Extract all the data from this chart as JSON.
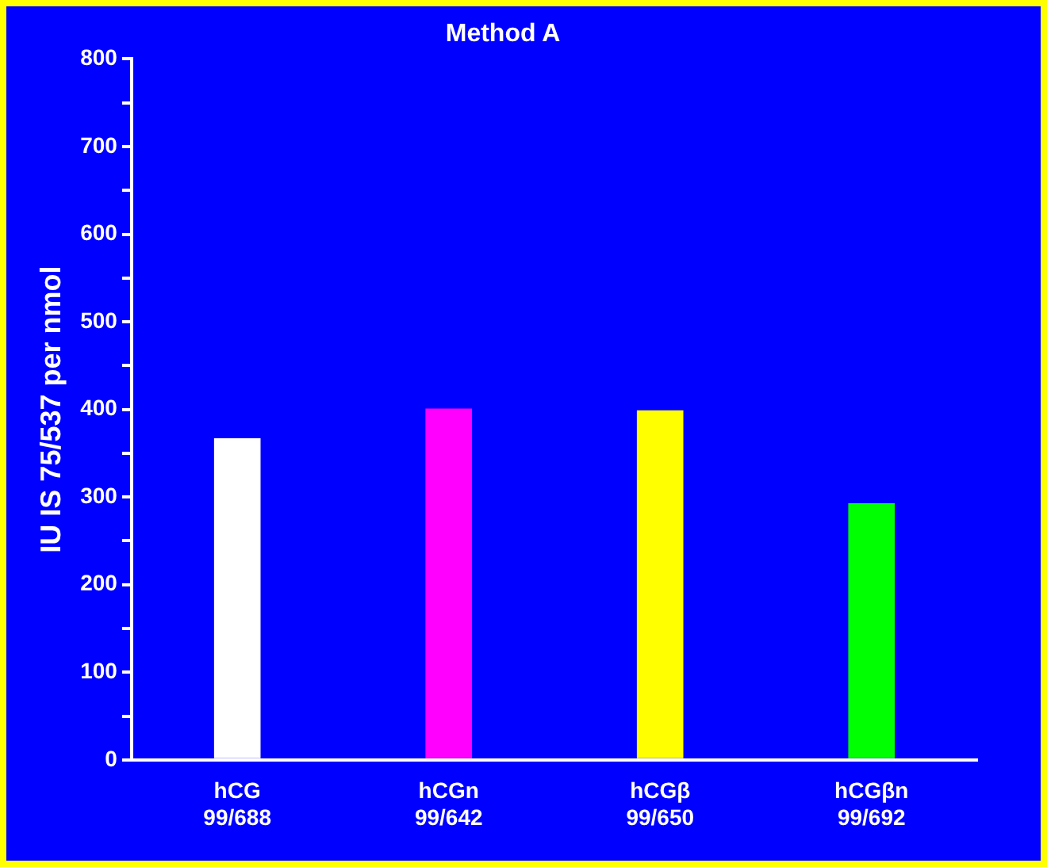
{
  "chart_data": {
    "type": "bar",
    "title": "Method A",
    "ylabel": "IU IS 75/537 per nmol",
    "categories": [
      "hCG\n99/688",
      "hCGn\n99/642",
      "hCGβ\n99/650",
      "hCGβn\n99/692"
    ],
    "values": [
      367,
      401,
      399,
      293
    ],
    "colors": [
      "#ffffff",
      "#ff00ff",
      "#ffff00",
      "#00ff00"
    ],
    "ylim": [
      0,
      800
    ],
    "yticks": [
      0,
      {
        "value": 50,
        "label": null
      },
      100,
      {
        "value": 150,
        "label": null
      },
      200,
      {
        "value": 250,
        "label": null
      },
      300,
      {
        "value": 350,
        "label": null
      },
      400,
      {
        "value": 450,
        "label": null
      },
      500,
      {
        "value": 550,
        "label": null
      },
      600,
      {
        "value": 650,
        "label": null
      },
      700,
      {
        "value": 750,
        "label": null
      },
      800
    ],
    "grid": false,
    "legend": false
  }
}
